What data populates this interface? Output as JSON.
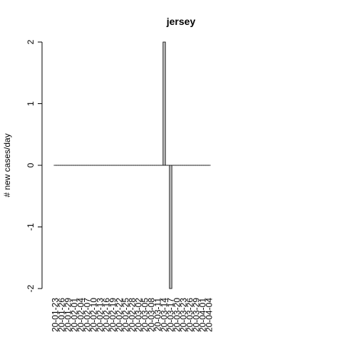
{
  "chart_data": {
    "type": "bar",
    "title": "jersey",
    "xlabel": "",
    "ylabel": "# new cases/day",
    "ylim": [
      -2,
      2
    ],
    "y_ticks": [
      -2,
      -1,
      0,
      1,
      2
    ],
    "tick_labels": [
      "20-01-23",
      "20-01-26",
      "20-01-29",
      "20-02-01",
      "20-02-04",
      "20-02-07",
      "20-02-10",
      "20-02-13",
      "20-02-16",
      "20-02-19",
      "20-02-22",
      "20-02-25",
      "20-02-28",
      "20-03-02",
      "20-03-05",
      "20-03-08",
      "20-03-11",
      "20-03-14",
      "20-03-17",
      "20-03-20",
      "20-03-23",
      "20-03-26",
      "20-03-29",
      "20-04-01",
      "20-04-04"
    ],
    "start_date": "20-01-23",
    "end_date": "20-04-04",
    "nonzero_values": [
      {
        "date": "20-03-14",
        "value": 2
      },
      {
        "date": "20-03-17",
        "value": -2
      }
    ],
    "bar_fill": "#bebebe",
    "bar_stroke": "#000000"
  }
}
